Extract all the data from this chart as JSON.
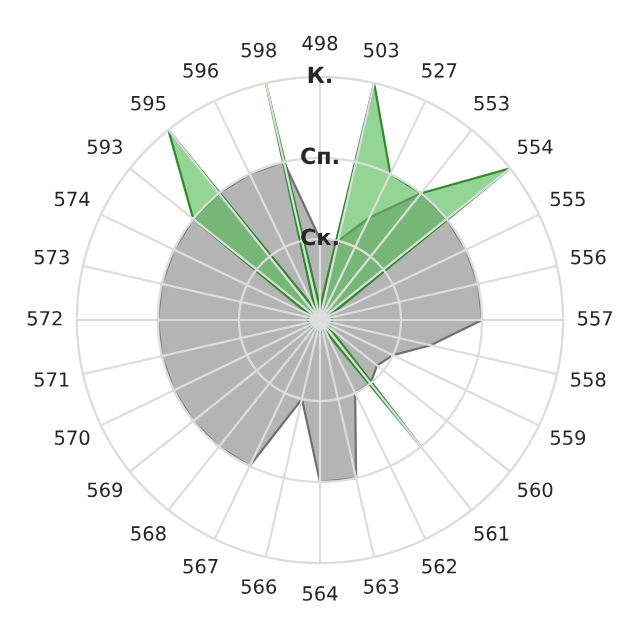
{
  "chart_data": {
    "type": "radar",
    "categories": [
      "498",
      "503",
      "527",
      "553",
      "554",
      "555",
      "556",
      "557",
      "558",
      "559",
      "560",
      "561",
      "562",
      "563",
      "564",
      "566",
      "567",
      "568",
      "569",
      "570",
      "571",
      "572",
      "573",
      "574",
      "593",
      "595",
      "596",
      "598"
    ],
    "series": [
      {
        "color": "#b4b4b4",
        "values": [
          1.0,
          1.0,
          1.4,
          2.0,
          2.0,
          2.0,
          2.0,
          2.0,
          1.4,
          1.0,
          0.9,
          1.0,
          1.0,
          2.0,
          2.0,
          1.0,
          2.0,
          2.0,
          2.0,
          2.0,
          2.0,
          2.0,
          2.0,
          2.0,
          2.0,
          2.0,
          2.0,
          2.0
        ]
      },
      {
        "color": "#4cb84c",
        "values": [
          0.15,
          3.0,
          2.0,
          2.0,
          3.0,
          0.15,
          0.15,
          0.15,
          0.15,
          0.15,
          0.15,
          2.0,
          0.15,
          0.15,
          0.15,
          0.15,
          0.15,
          0.15,
          0.15,
          0.15,
          0.15,
          0.15,
          0.15,
          0.15,
          2.0,
          3.0,
          0.15,
          3.0
        ]
      }
    ],
    "ylim": [
      0,
      3
    ],
    "yticks": [
      {
        "value": 1,
        "label": "Ск."
      },
      {
        "value": 2,
        "label": "Сп."
      },
      {
        "value": 3,
        "label": "К."
      }
    ],
    "grid": true
  }
}
